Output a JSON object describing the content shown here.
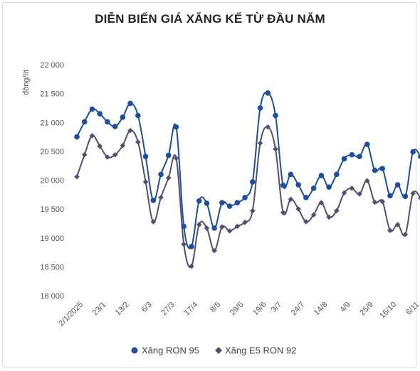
{
  "chart_data": {
    "type": "line",
    "title": "DIỄN BIẾN GIÁ XĂNG KỂ TỪ ĐẦU NĂM",
    "ylabel": "đồng/lít",
    "xlabel": "",
    "ylim": [
      18000,
      22000
    ],
    "yticks": [
      18000,
      18500,
      19000,
      19500,
      20000,
      20500,
      21000,
      21500,
      22000
    ],
    "ytick_labels": [
      "18 000",
      "18 500",
      "19 000",
      "19 500",
      "20 000",
      "20 500",
      "21 000",
      "21 500",
      "22 000"
    ],
    "xtick_labels": [
      "2/1/2025",
      "23/1",
      "13/2",
      "6/3",
      "27/3",
      "17/4",
      "8/5",
      "29/5",
      "19/6",
      "3/7",
      "24/7",
      "14/8",
      "4/9",
      "25/9",
      "16/10",
      "6/11"
    ],
    "xtick_index": [
      0,
      3,
      6,
      9,
      12,
      15,
      18,
      21,
      24,
      26,
      29,
      32,
      35,
      38,
      41,
      44
    ],
    "grid": false,
    "legend_position": "bottom",
    "series": [
      {
        "name": "Xăng RON 95",
        "color": "#1f4e9c",
        "marker": "circle",
        "values": [
          20750,
          21010,
          21230,
          21150,
          21010,
          20930,
          21090,
          21330,
          21120,
          20410,
          19650,
          20100,
          20430,
          20920,
          19200,
          18850,
          19640,
          19600,
          19170,
          19610,
          19550,
          19610,
          19700,
          19970,
          21250,
          21510,
          21120,
          19910,
          20100,
          19920,
          19700,
          19860,
          20080,
          19880,
          20100,
          20370,
          20440,
          20410,
          20620,
          20170,
          20200,
          19730,
          19920,
          19720,
          20490,
          20410
        ]
      },
      {
        "name": "Xăng E5 RON 92",
        "color": "#564e6f",
        "marker": "diamond",
        "values": [
          20060,
          20440,
          20770,
          20590,
          20400,
          20440,
          20600,
          20860,
          20660,
          19970,
          19280,
          19700,
          20040,
          20380,
          18890,
          18510,
          19230,
          19170,
          18780,
          19190,
          19120,
          19200,
          19270,
          19470,
          20640,
          20920,
          20540,
          19440,
          19670,
          19500,
          19280,
          19400,
          19610,
          19360,
          19470,
          19780,
          19860,
          19760,
          19990,
          19620,
          19630,
          19130,
          19230,
          19060,
          19770,
          19690
        ]
      }
    ]
  }
}
